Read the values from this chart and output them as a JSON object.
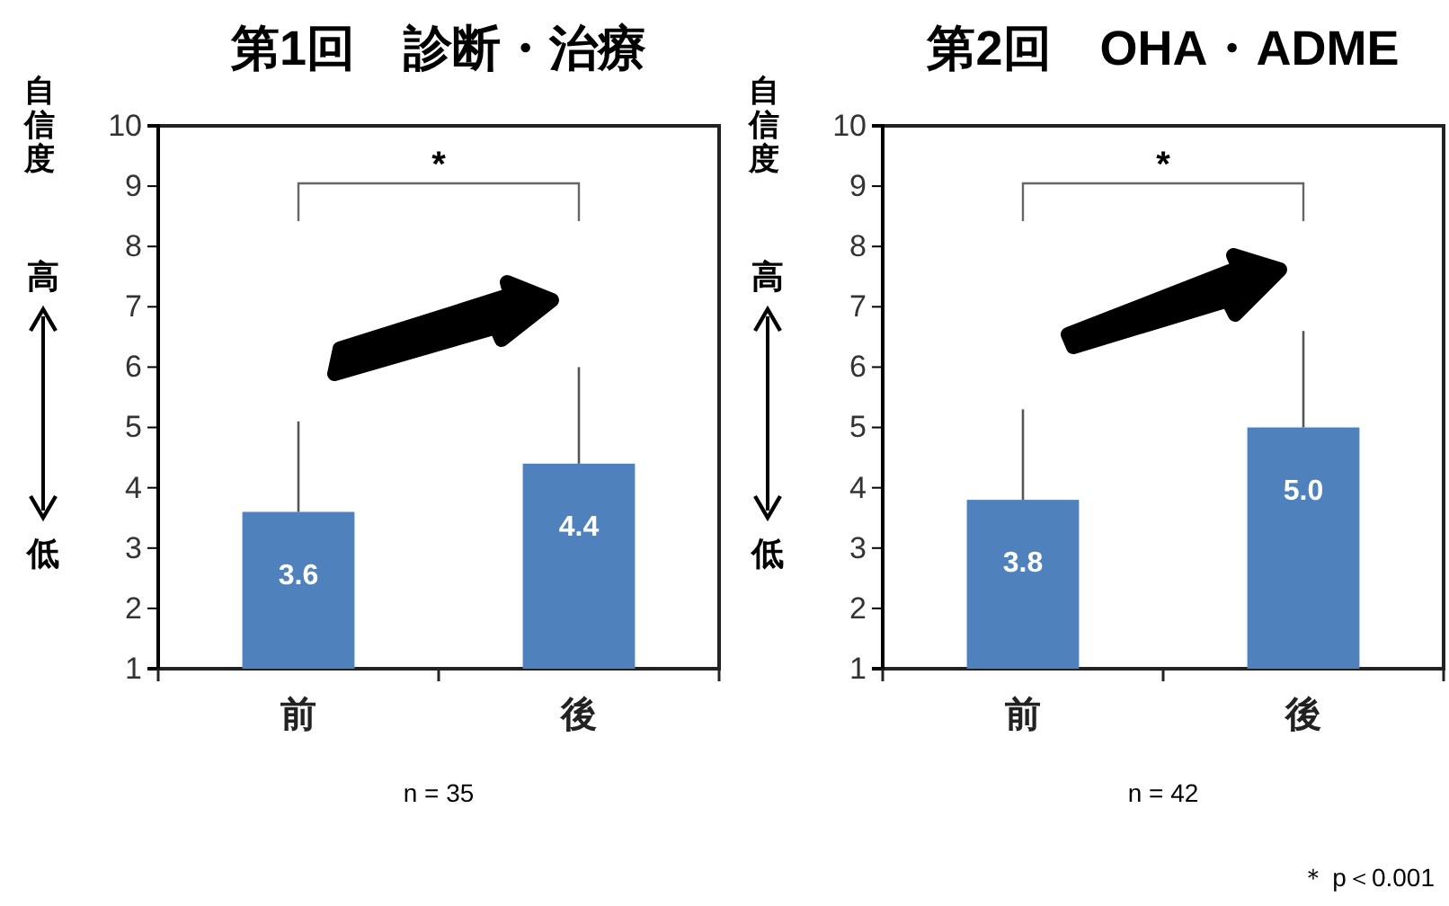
{
  "chart_data": [
    {
      "type": "bar",
      "title": "第1回　診断・治療",
      "ylabel": "自信度",
      "categories": [
        "前",
        "後"
      ],
      "values": [
        3.6,
        4.4
      ],
      "color": "#4f81bd",
      "errors": [
        [
          3.6,
          5.1
        ],
        [
          4.4,
          6.0
        ]
      ],
      "value_labels": [
        "3.6",
        "4.4"
      ],
      "ylim": [
        1,
        10
      ],
      "yticks": [
        1,
        2,
        3,
        4,
        5,
        6,
        7,
        8,
        9,
        10
      ],
      "annotations": [
        "高",
        "低",
        "*",
        "n = 35"
      ]
    },
    {
      "type": "bar",
      "title": "第2回　OHA・ADME",
      "ylabel": "自信度",
      "categories": [
        "前",
        "後"
      ],
      "values": [
        3.8,
        5.0
      ],
      "color": "#4f81bd",
      "errors": [
        [
          3.8,
          5.3
        ],
        [
          5.0,
          6.6
        ]
      ],
      "value_labels": [
        "3.8",
        "5.0"
      ],
      "ylim": [
        1,
        10
      ],
      "yticks": [
        1,
        2,
        3,
        4,
        5,
        6,
        7,
        8,
        9,
        10
      ],
      "annotations": [
        "高",
        "低",
        "*",
        "n = 42",
        "＊ p＜0.001"
      ]
    }
  ]
}
